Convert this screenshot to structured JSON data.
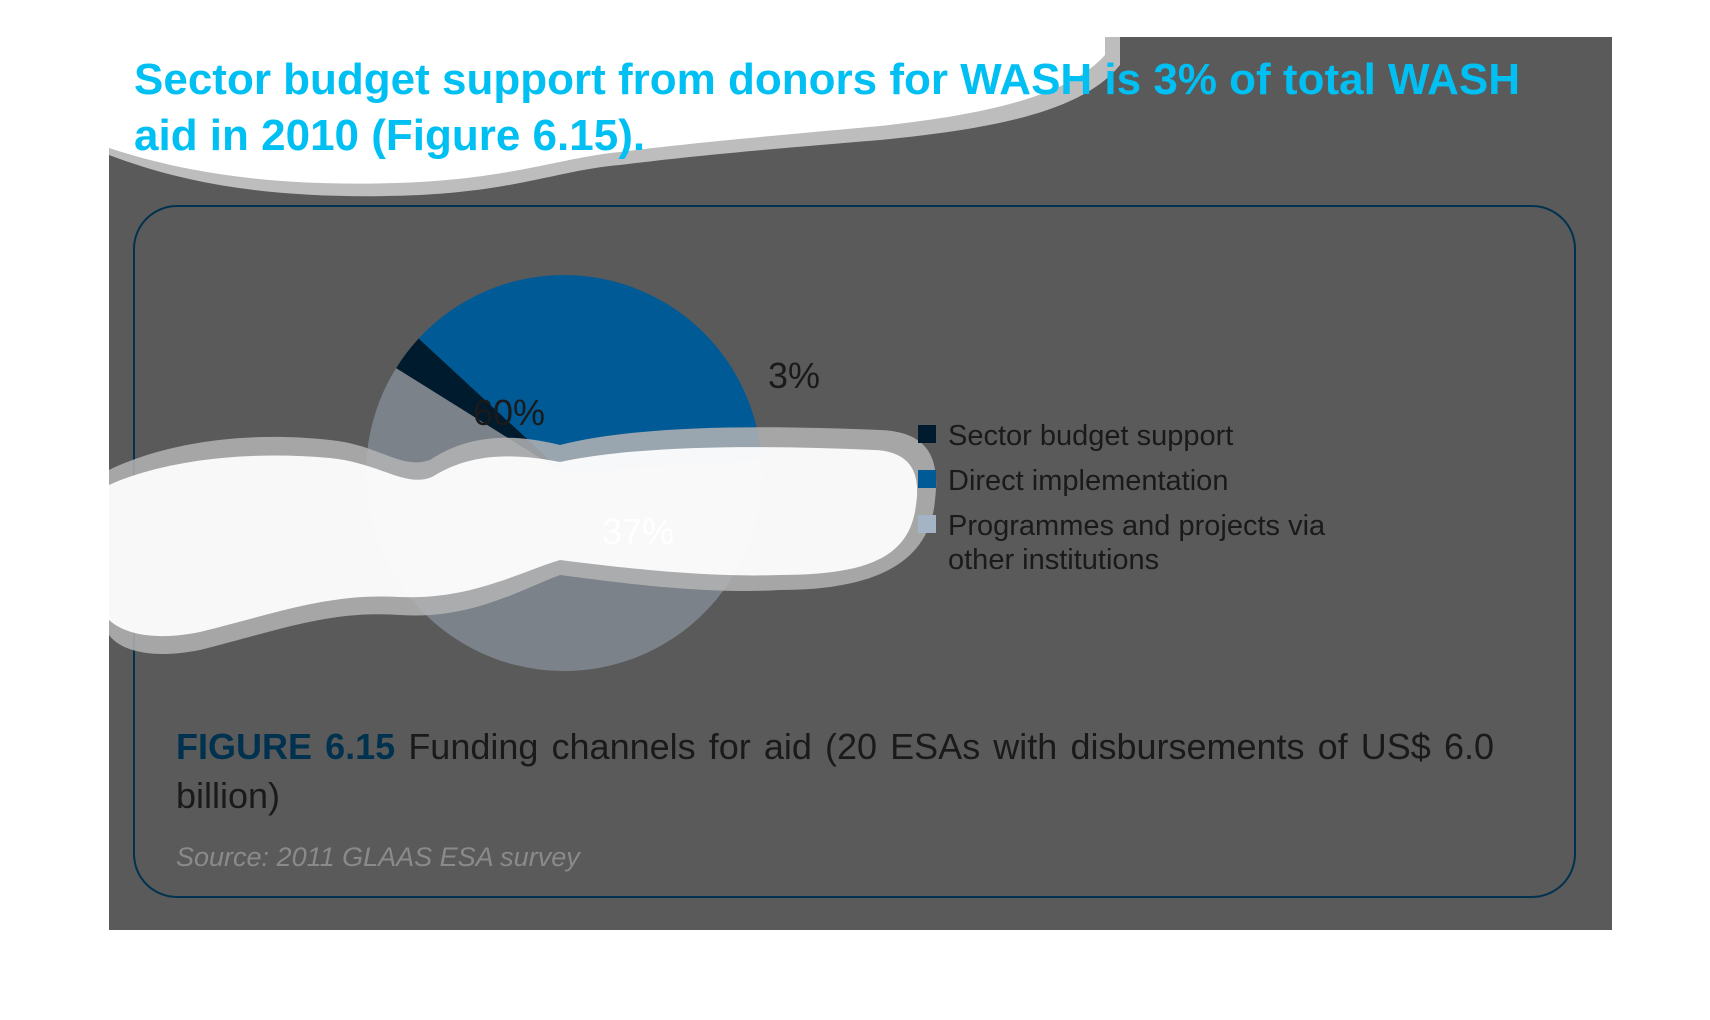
{
  "headline": "Sector budget support from donors for WASH is 3% of total WASH aid in 2010 (Figure 6.15).",
  "colors": {
    "sector_budget_support": "#001a2e",
    "direct_implementation": "#005a96",
    "programmes_projects": "#a4b4c4",
    "accent": "#00c0f3",
    "frame": "#00324f"
  },
  "chart_data": {
    "type": "pie",
    "title": "",
    "slices": [
      {
        "label": "Sector budget support",
        "value": 3,
        "display": "3%"
      },
      {
        "label": "Direct implementation",
        "value": 37,
        "display": "37%"
      },
      {
        "label": "Programmes and projects via other institutions",
        "value": 60,
        "display": "60%"
      }
    ],
    "legend": {
      "placement": "right",
      "entries": [
        "Sector budget support",
        "Direct implementation",
        "Programmes and projects via",
        "other institutions"
      ]
    }
  },
  "caption": {
    "figure_label": "FIGURE 6.15",
    "text": "Funding channels for aid (20 ESAs with disbursements of US$ 6.0 billion)"
  },
  "source": "Source: 2011 GLAAS ESA survey"
}
